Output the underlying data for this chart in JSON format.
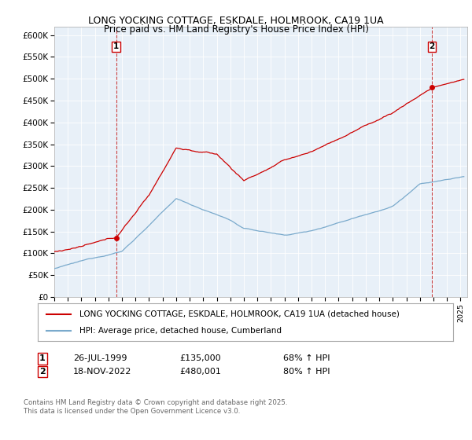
{
  "title1": "LONG YOCKING COTTAGE, ESKDALE, HOLMROOK, CA19 1UA",
  "title2": "Price paid vs. HM Land Registry's House Price Index (HPI)",
  "xlim_start": 1995.0,
  "xlim_end": 2025.5,
  "ylim": [
    0,
    620000
  ],
  "yticks": [
    0,
    50000,
    100000,
    150000,
    200000,
    250000,
    300000,
    350000,
    400000,
    450000,
    500000,
    550000,
    600000
  ],
  "ytick_labels": [
    "£0",
    "£50K",
    "£100K",
    "£150K",
    "£200K",
    "£250K",
    "£300K",
    "£350K",
    "£400K",
    "£450K",
    "£500K",
    "£550K",
    "£600K"
  ],
  "marker1_x": 1999.57,
  "marker1_y": 135000,
  "marker1_date": "26-JUL-1999",
  "marker1_price": "£135,000",
  "marker1_hpi": "68% ↑ HPI",
  "marker2_x": 2022.88,
  "marker2_y": 480001,
  "marker2_date": "18-NOV-2022",
  "marker2_price": "£480,001",
  "marker2_hpi": "80% ↑ HPI",
  "legend_line1": "LONG YOCKING COTTAGE, ESKDALE, HOLMROOK, CA19 1UA (detached house)",
  "legend_line2": "HPI: Average price, detached house, Cumberland",
  "footnote": "Contains HM Land Registry data © Crown copyright and database right 2025.\nThis data is licensed under the Open Government Licence v3.0.",
  "line_color_red": "#cc0000",
  "line_color_blue": "#7aaacc",
  "plot_bg_color": "#e8f0f8",
  "fig_bg_color": "#ffffff",
  "grid_color": "#ffffff"
}
